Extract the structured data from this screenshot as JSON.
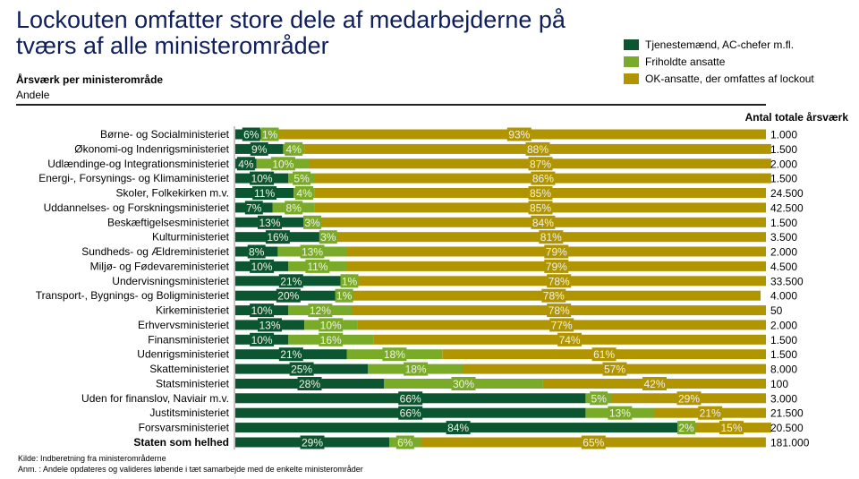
{
  "header": {
    "title": "Lockouten omfatter store dele af medarbejderne på tværs af alle ministerområder",
    "subtitle": "Årsværk per ministerområde",
    "subsubtitle": "Andele"
  },
  "colors": {
    "tjenestemaend": "#0b5530",
    "friholdte": "#7aab28",
    "ok": "#b09400",
    "title": "#0f1f5c"
  },
  "chart_data": {
    "type": "bar",
    "orientation": "horizontal",
    "stacked": "100%",
    "title": "Lockouten omfatter store dele af medarbejderne på tværs af alle ministerområder",
    "xlabel": "",
    "ylabel": "",
    "unit": "%",
    "total_column_header": "Antal totale årsværk",
    "legend_position": "top-right",
    "categories": [
      "Børne- og Socialministeriet",
      "Økonomi-og Indenrigsministeriet",
      "Udlændinge-og Integrationsministeriet",
      "Energi-, Forsynings- og Klimaministeriet",
      "Skoler, Folkekirken m.v.",
      "Uddannelses- og Forskningsministeriet",
      "Beskæftigelsesministeriet",
      "Kulturministeriet",
      "Sundheds- og Ældreministeriet",
      "Miljø- og Fødevareministeriet",
      "Undervisningsministeriet",
      "Transport-, Bygnings- og Boligministeriet",
      "Kirkeministeriet",
      "Erhvervsministeriet",
      "Finansministeriet",
      "Udenrigsministeriet",
      "Skatteministeriet",
      "Statsministeriet",
      "Uden for finanslov, Naviair m.v.",
      "Justitsministeriet",
      "Forsvarsministeriet",
      "Staten som helhed"
    ],
    "bold_category": "Staten som helhed",
    "series": [
      {
        "name": "Tjenestemænd, AC-chefer m.fl.",
        "color": "#0b5530",
        "values": [
          6,
          9,
          4,
          10,
          11,
          7,
          13,
          16,
          8,
          10,
          21,
          20,
          10,
          13,
          10,
          21,
          25,
          28,
          66,
          66,
          84,
          29
        ]
      },
      {
        "name": "Friholdte ansatte",
        "color": "#7aab28",
        "values": [
          1,
          4,
          10,
          5,
          4,
          8,
          3,
          3,
          13,
          11,
          1,
          1,
          12,
          10,
          16,
          18,
          18,
          30,
          5,
          13,
          2,
          6
        ]
      },
      {
        "name": "OK-ansatte, der omfattes af lockout",
        "color": "#b09400",
        "values": [
          93,
          88,
          87,
          86,
          85,
          85,
          84,
          81,
          79,
          79,
          78,
          78,
          78,
          77,
          74,
          61,
          57,
          42,
          29,
          21,
          15,
          65
        ]
      }
    ],
    "totals": [
      "1.000",
      "1.500",
      "2.000",
      "1.500",
      "24.500",
      "42.500",
      "1.500",
      "3.500",
      "2.000",
      "4.500",
      "33.500",
      "4.000",
      "50",
      "2.000",
      "1.500",
      "1.500",
      "8.000",
      "100",
      "3.000",
      "21.500",
      "20.500",
      "181.000"
    ],
    "xlim": [
      0,
      100
    ]
  },
  "footer": {
    "source": "Kilde: Indberetning fra ministerområderne",
    "note": "Anm. : Andele opdateres og valideres løbende i tæt samarbejde med de enkelte ministerområder"
  }
}
